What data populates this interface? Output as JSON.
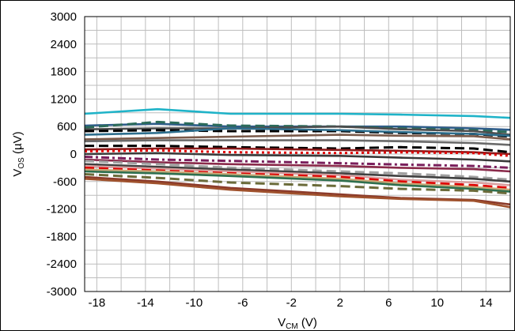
{
  "chart_data": {
    "type": "line",
    "title": "",
    "xlabel": {
      "main": "V",
      "sub": "CM",
      "unit": " (V)"
    },
    "ylabel": {
      "main": "V",
      "sub": "OS",
      "unit": " (µV)"
    },
    "xlim": [
      -19,
      16
    ],
    "ylim": [
      -3000,
      3000
    ],
    "grid": true,
    "x_ticks": [
      -18,
      -14,
      -10,
      -6,
      -2,
      2,
      6,
      10,
      14
    ],
    "x_tick_labels": [
      "-18",
      "-14",
      "-10",
      "-6",
      "-2",
      "2",
      "6",
      "10",
      "14"
    ],
    "y_ticks": [
      -3000,
      -2400,
      -1800,
      -1200,
      -600,
      0,
      600,
      1200,
      1800,
      2400,
      3000
    ],
    "y_tick_labels": [
      "-3000",
      "-2400",
      "-1800",
      "-1200",
      "-600",
      "0",
      "600",
      "1200",
      "1800",
      "2400",
      "3000"
    ],
    "x": [
      -19,
      -13,
      -7,
      2,
      7,
      13,
      16
    ],
    "series": [
      {
        "values": [
          880,
          980,
          880,
          880,
          860,
          830,
          790
        ],
        "color": "#1fb3c8",
        "dash": "solid"
      },
      {
        "values": [
          620,
          660,
          600,
          600,
          600,
          560,
          530
        ],
        "color": "#2e5c8a",
        "dash": "solid"
      },
      {
        "values": [
          580,
          700,
          620,
          600,
          560,
          520,
          480
        ],
        "color": "#2b6b5a",
        "dash": "dash"
      },
      {
        "values": [
          540,
          560,
          560,
          600,
          540,
          500,
          420
        ],
        "color": "#4d4d4d",
        "dash": "solid"
      },
      {
        "values": [
          500,
          520,
          500,
          500,
          460,
          440,
          380
        ],
        "color": "#000000",
        "dash": "dash"
      },
      {
        "values": [
          420,
          460,
          560,
          520,
          480,
          440,
          400
        ],
        "color": "#2e6f8e",
        "dash": "solid"
      },
      {
        "values": [
          320,
          350,
          380,
          420,
          400,
          390,
          320
        ],
        "color": "#7a5a4a",
        "dash": "solid"
      },
      {
        "values": [
          280,
          300,
          300,
          300,
          280,
          240,
          200
        ],
        "color": "#6b6b6b",
        "dash": "solid"
      },
      {
        "values": [
          180,
          180,
          150,
          120,
          150,
          120,
          40
        ],
        "color": "#000000",
        "dash": "dash"
      },
      {
        "values": [
          100,
          120,
          120,
          90,
          70,
          40,
          0
        ],
        "color": "#8b1a1a",
        "dash": "solid"
      },
      {
        "values": [
          60,
          80,
          40,
          20,
          40,
          20,
          -40
        ],
        "color": "#e00000",
        "dash": "dot"
      },
      {
        "values": [
          0,
          20,
          -20,
          -40,
          -80,
          -120,
          -160
        ],
        "color": "#3a3a3a",
        "dash": "solid"
      },
      {
        "values": [
          -60,
          -120,
          -150,
          -200,
          -230,
          -260,
          -300
        ],
        "color": "#7a1f5c",
        "dash": "dashdot"
      },
      {
        "values": [
          -120,
          -180,
          -220,
          -260,
          -300,
          -330,
          -380
        ],
        "color": "#8a2a4a",
        "dash": "solid"
      },
      {
        "values": [
          -150,
          -220,
          -300,
          -380,
          -420,
          -500,
          -560
        ],
        "color": "#a0a0a0",
        "dash": "dash"
      },
      {
        "values": [
          -220,
          -280,
          -340,
          -420,
          -480,
          -540,
          -600
        ],
        "color": "#404040",
        "dash": "solid"
      },
      {
        "values": [
          -260,
          -320,
          -380,
          -460,
          -560,
          -620,
          -680
        ],
        "color": "#d9a0a0",
        "dash": "solid"
      },
      {
        "values": [
          -300,
          -360,
          -420,
          -500,
          -600,
          -680,
          -740
        ],
        "color": "#e00000",
        "dash": "dash"
      },
      {
        "values": [
          -340,
          -380,
          -440,
          -540,
          -640,
          -720,
          -780
        ],
        "color": "#c8a878",
        "dash": "solid"
      },
      {
        "values": [
          -380,
          -420,
          -480,
          -580,
          -680,
          -760,
          -820
        ],
        "color": "#2e6f4e",
        "dash": "solid"
      },
      {
        "values": [
          -440,
          -520,
          -620,
          -700,
          -760,
          -800,
          -860
        ],
        "color": "#6b6b3a",
        "dash": "dash"
      },
      {
        "values": [
          -500,
          -600,
          -740,
          -880,
          -960,
          -1000,
          -1100
        ],
        "color": "#8b3a2a",
        "dash": "solid"
      },
      {
        "values": [
          -540,
          -640,
          -780,
          -920,
          -980,
          -1020,
          -1160
        ],
        "color": "#a0522d",
        "dash": "solid"
      }
    ]
  }
}
